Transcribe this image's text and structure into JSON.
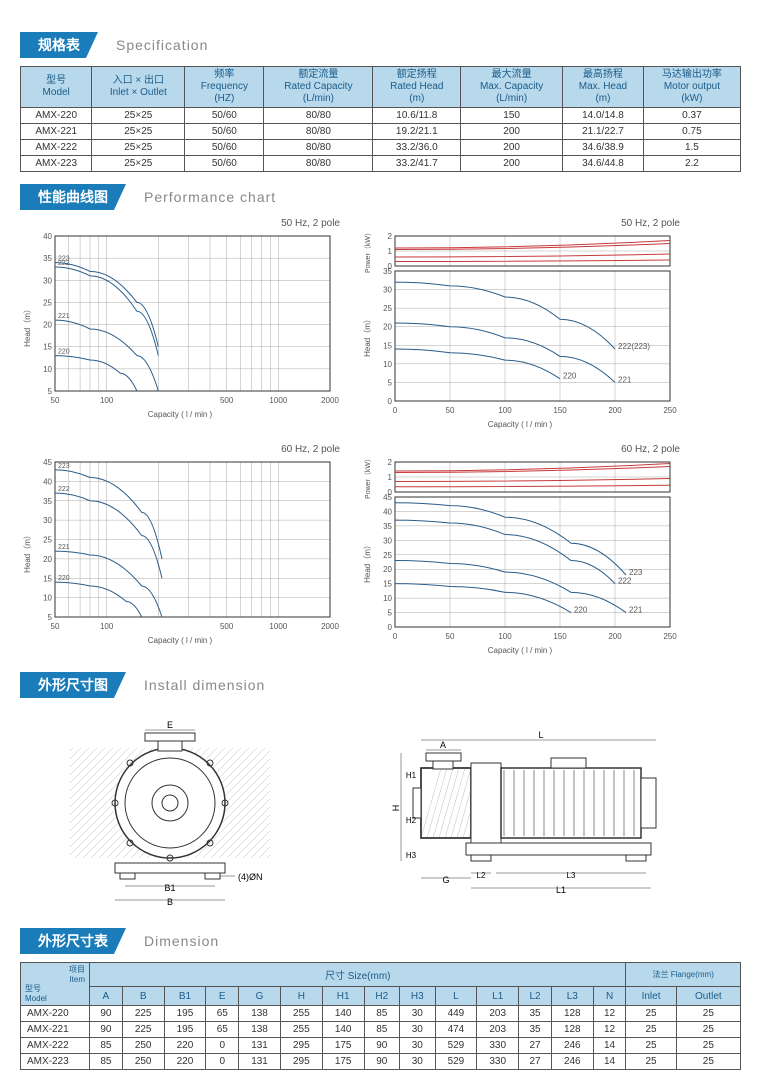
{
  "sections": {
    "spec": {
      "cn": "规格表",
      "en": "Specification"
    },
    "perf": {
      "cn": "性能曲线图",
      "en": "Performance chart"
    },
    "install": {
      "cn": "外形尺寸图",
      "en": "Install dimension"
    },
    "dim": {
      "cn": "外形尺寸表",
      "en": "Dimension"
    }
  },
  "specHeaders": {
    "model": {
      "cn": "型号",
      "en": "Model"
    },
    "inlet": {
      "cn": "入口 × 出口",
      "en": "Inlet × Outlet"
    },
    "freq": {
      "cn": "频率",
      "en": "Frequency",
      "unit": "(HZ)"
    },
    "ratedCap": {
      "cn": "额定流量",
      "en": "Rated Capacity",
      "unit": "(L/min)"
    },
    "ratedHead": {
      "cn": "额定扬程",
      "en": "Rated Head",
      "unit": "(m)"
    },
    "maxCap": {
      "cn": "最大流量",
      "en": "Max. Capacity",
      "unit": "(L/min)"
    },
    "maxHead": {
      "cn": "最高扬程",
      "en": "Max. Head",
      "unit": "(m)"
    },
    "motor": {
      "cn": "马达输出功率",
      "en": "Motor output",
      "unit": "(kW)"
    }
  },
  "specRows": [
    {
      "model": "AMX-220",
      "inlet": "25×25",
      "freq": "50/60",
      "ratedCap": "80/80",
      "ratedHead": "10.6/11.8",
      "maxCap": "150",
      "maxHead": "14.0/14.8",
      "motor": "0.37"
    },
    {
      "model": "AMX-221",
      "inlet": "25×25",
      "freq": "50/60",
      "ratedCap": "80/80",
      "ratedHead": "19.2/21.1",
      "maxCap": "200",
      "maxHead": "21.1/22.7",
      "motor": "0.75"
    },
    {
      "model": "AMX-222",
      "inlet": "25×25",
      "freq": "50/60",
      "ratedCap": "80/80",
      "ratedHead": "33.2/36.0",
      "maxCap": "200",
      "maxHead": "34.6/38.9",
      "motor": "1.5"
    },
    {
      "model": "AMX-223",
      "inlet": "25×25",
      "freq": "50/60",
      "ratedCap": "80/80",
      "ratedHead": "33.2/41.7",
      "maxCap": "200",
      "maxHead": "34.6/44.8",
      "motor": "2.2"
    }
  ],
  "chartTitles": {
    "t50": "50 Hz, 2 pole",
    "t60": "60 Hz, 2 pole"
  },
  "chartLabels": {
    "head": "Head（m）",
    "power": "Power（kW）",
    "capacity": "Capacity ( l / min )"
  },
  "chart50L": {
    "yticks": [
      5,
      10,
      15,
      20,
      25,
      30,
      35,
      40
    ],
    "xticks": [
      50,
      100,
      500,
      1000,
      2000
    ],
    "curves": [
      {
        "label": "220",
        "pts": [
          [
            50,
            13
          ],
          [
            80,
            12
          ],
          [
            120,
            9
          ],
          [
            150,
            5
          ]
        ]
      },
      {
        "label": "221",
        "pts": [
          [
            50,
            21
          ],
          [
            80,
            19
          ],
          [
            150,
            13
          ],
          [
            200,
            5
          ]
        ]
      },
      {
        "label": "223",
        "pts": [
          [
            50,
            34
          ],
          [
            80,
            32
          ],
          [
            150,
            25
          ],
          [
            200,
            15
          ]
        ]
      },
      {
        "label": "222",
        "pts": [
          [
            50,
            33
          ],
          [
            80,
            31
          ],
          [
            150,
            23
          ],
          [
            200,
            13
          ]
        ]
      }
    ]
  },
  "chart50R": {
    "power_yticks": [
      0,
      1,
      2
    ],
    "head_yticks": [
      0,
      5,
      10,
      15,
      20,
      25,
      30,
      35
    ],
    "xticks": [
      0,
      50,
      100,
      150,
      200,
      250
    ],
    "power_curves": [
      {
        "pts": [
          [
            0,
            0.3
          ],
          [
            250,
            0.4
          ]
        ]
      },
      {
        "pts": [
          [
            0,
            0.6
          ],
          [
            250,
            0.8
          ]
        ]
      },
      {
        "pts": [
          [
            0,
            1.1
          ],
          [
            250,
            1.5
          ]
        ]
      },
      {
        "pts": [
          [
            0,
            1.2
          ],
          [
            250,
            1.7
          ]
        ]
      }
    ],
    "head_curves": [
      {
        "label": "220",
        "pts": [
          [
            0,
            14
          ],
          [
            50,
            13
          ],
          [
            100,
            11
          ],
          [
            150,
            6
          ]
        ]
      },
      {
        "label": "221",
        "pts": [
          [
            0,
            21
          ],
          [
            50,
            20
          ],
          [
            100,
            17
          ],
          [
            150,
            12
          ],
          [
            200,
            5
          ]
        ]
      },
      {
        "label": "222(223)",
        "pts": [
          [
            0,
            32
          ],
          [
            50,
            31
          ],
          [
            100,
            28
          ],
          [
            150,
            22
          ],
          [
            200,
            14
          ]
        ]
      }
    ]
  },
  "chart60L": {
    "yticks": [
      5,
      10,
      15,
      20,
      25,
      30,
      35,
      40,
      45
    ],
    "xticks": [
      50,
      100,
      500,
      1000,
      2000
    ],
    "curves": [
      {
        "label": "220",
        "pts": [
          [
            50,
            14
          ],
          [
            80,
            13
          ],
          [
            130,
            9
          ],
          [
            160,
            5
          ]
        ]
      },
      {
        "label": "221",
        "pts": [
          [
            50,
            22
          ],
          [
            80,
            21
          ],
          [
            160,
            13
          ],
          [
            210,
            5
          ]
        ]
      },
      {
        "label": "222",
        "pts": [
          [
            50,
            37
          ],
          [
            80,
            35
          ],
          [
            160,
            26
          ],
          [
            210,
            15
          ]
        ]
      },
      {
        "label": "223",
        "pts": [
          [
            50,
            43
          ],
          [
            80,
            41
          ],
          [
            160,
            32
          ],
          [
            210,
            20
          ]
        ]
      }
    ]
  },
  "chart60R": {
    "power_yticks": [
      0,
      1,
      2
    ],
    "head_yticks": [
      0,
      5,
      10,
      15,
      20,
      25,
      30,
      35,
      40,
      45
    ],
    "xticks": [
      0,
      50,
      100,
      150,
      200,
      250
    ],
    "power_curves": [
      {
        "pts": [
          [
            0,
            0.35
          ],
          [
            250,
            0.45
          ]
        ]
      },
      {
        "pts": [
          [
            0,
            0.7
          ],
          [
            250,
            0.9
          ]
        ]
      },
      {
        "pts": [
          [
            0,
            1.3
          ],
          [
            250,
            1.7
          ]
        ]
      },
      {
        "pts": [
          [
            0,
            1.4
          ],
          [
            250,
            1.9
          ]
        ]
      }
    ],
    "head_curves": [
      {
        "label": "220",
        "pts": [
          [
            0,
            15
          ],
          [
            50,
            14
          ],
          [
            100,
            12
          ],
          [
            160,
            5
          ]
        ]
      },
      {
        "label": "221",
        "pts": [
          [
            0,
            23
          ],
          [
            50,
            22
          ],
          [
            100,
            19
          ],
          [
            160,
            12
          ],
          [
            210,
            5
          ]
        ]
      },
      {
        "label": "222",
        "pts": [
          [
            0,
            37
          ],
          [
            50,
            36
          ],
          [
            100,
            32
          ],
          [
            160,
            23
          ],
          [
            200,
            15
          ]
        ]
      },
      {
        "label": "223",
        "pts": [
          [
            0,
            43
          ],
          [
            50,
            42
          ],
          [
            100,
            38
          ],
          [
            160,
            29
          ],
          [
            210,
            18
          ]
        ]
      }
    ]
  },
  "colors": {
    "curve": "#2a5c8a",
    "power": "#c83a3a",
    "grid": "#aaa",
    "axis": "#333"
  },
  "dimHeaders": {
    "itemCn": "型号",
    "itemEn": "Model",
    "projCn": "项目",
    "projEn": "Item",
    "sizeCn": "尺寸 Size(mm)",
    "flangeCn": "法兰 Flange(mm)",
    "cols": [
      "A",
      "B",
      "B1",
      "E",
      "G",
      "H",
      "H1",
      "H2",
      "H3",
      "L",
      "L1",
      "L2",
      "L3",
      "N",
      "Inlet",
      "Outlet"
    ]
  },
  "dimRows": [
    {
      "model": "AMX-220",
      "v": [
        "90",
        "225",
        "195",
        "65",
        "138",
        "255",
        "140",
        "85",
        "30",
        "449",
        "203",
        "35",
        "128",
        "12",
        "25",
        "25"
      ]
    },
    {
      "model": "AMX-221",
      "v": [
        "90",
        "225",
        "195",
        "65",
        "138",
        "255",
        "140",
        "85",
        "30",
        "474",
        "203",
        "35",
        "128",
        "12",
        "25",
        "25"
      ]
    },
    {
      "model": "AMX-222",
      "v": [
        "85",
        "250",
        "220",
        "0",
        "131",
        "295",
        "175",
        "90",
        "30",
        "529",
        "330",
        "27",
        "246",
        "14",
        "25",
        "25"
      ]
    },
    {
      "model": "AMX-223",
      "v": [
        "85",
        "250",
        "220",
        "0",
        "131",
        "295",
        "175",
        "90",
        "30",
        "529",
        "330",
        "27",
        "246",
        "14",
        "25",
        "25"
      ]
    }
  ],
  "drawingLabels": {
    "front": [
      "E",
      "B1",
      "B",
      "(4)ØN"
    ],
    "side": [
      "A",
      "L",
      "H",
      "H1",
      "H2",
      "H3",
      "G",
      "L1",
      "L2",
      "L3"
    ]
  }
}
